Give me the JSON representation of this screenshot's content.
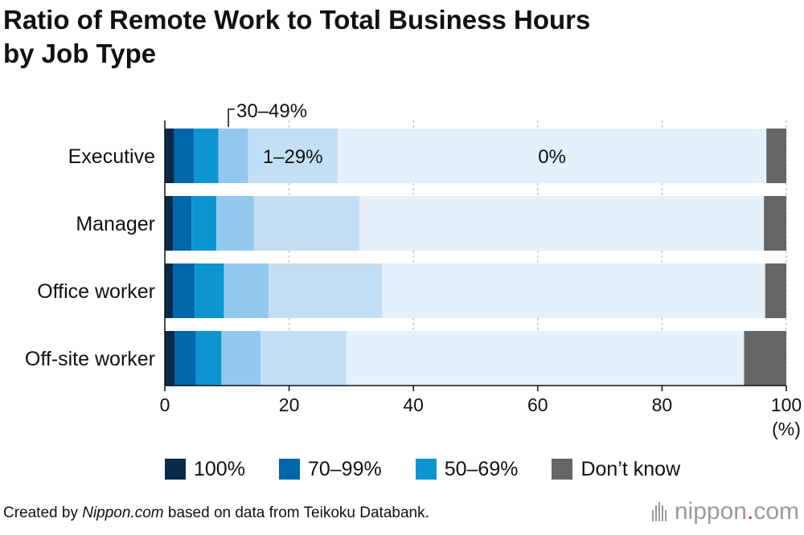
{
  "title": {
    "line1": "Ratio of Remote Work to Total Business Hours",
    "line2": "by Job Type"
  },
  "chart_data": {
    "type": "bar",
    "orientation": "horizontal",
    "stacked": true,
    "categories": [
      "Executive",
      "Manager",
      "Office worker",
      "Off-site worker"
    ],
    "series": [
      {
        "name": "100%",
        "color": "#0a2a4a",
        "values": [
          1.5,
          1.3,
          1.3,
          1.6
        ]
      },
      {
        "name": "70–99%",
        "color": "#0067aa",
        "values": [
          3.2,
          3.0,
          3.5,
          3.4
        ]
      },
      {
        "name": "50–69%",
        "color": "#0f94d2",
        "values": [
          3.9,
          4.0,
          4.7,
          4.1
        ]
      },
      {
        "name": "30–49%",
        "color": "#93c8ee",
        "values": [
          4.8,
          6.0,
          7.2,
          6.3
        ]
      },
      {
        "name": "1–29%",
        "color": "#c2dff5",
        "values": [
          14.4,
          17.0,
          18.3,
          13.8
        ]
      },
      {
        "name": "0%",
        "color": "#e4f0fa",
        "values": [
          69.0,
          65.1,
          61.6,
          64.0
        ]
      },
      {
        "name": "Don’t know",
        "color": "#666666",
        "values": [
          3.2,
          3.6,
          3.4,
          6.8
        ]
      }
    ],
    "inline_labels": [
      {
        "series": "30–49%",
        "text": "30–49%"
      },
      {
        "series": "1–29%",
        "text": "1–29%"
      },
      {
        "series": "0%",
        "text": "0%"
      }
    ],
    "x_ticks": [
      0,
      20,
      40,
      60,
      80,
      100
    ],
    "x_unit": "(%)",
    "xlim": [
      0,
      100
    ],
    "grid": "vertical",
    "legend_position": "bottom",
    "legend_series": [
      "100%",
      "70–99%",
      "50–69%",
      "Don’t know"
    ]
  },
  "footer": {
    "prefix": "Created by ",
    "source_italic": "Nippon.com",
    "suffix": " based on data from Teikoku Databank."
  },
  "brand": {
    "name": "nippon",
    "dot": ".",
    "tld": "com"
  }
}
